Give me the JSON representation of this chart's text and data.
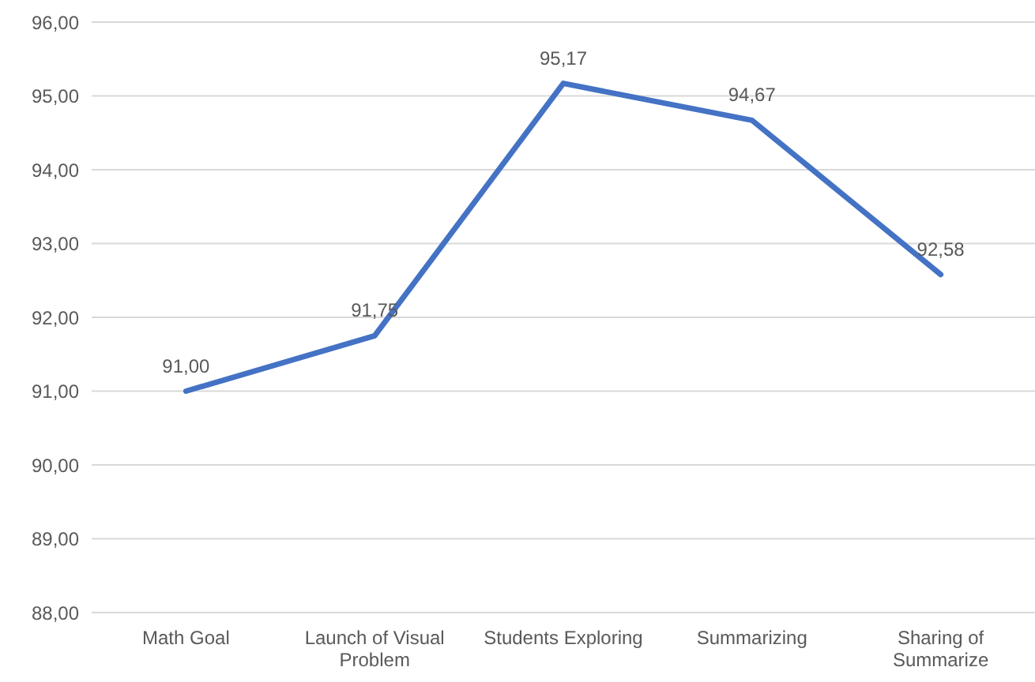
{
  "chart_data": {
    "type": "line",
    "categories": [
      "Math Goal",
      "Launch of Visual Problem",
      "Students Exploring",
      "Summarizing",
      "Sharing of Summarize"
    ],
    "values": [
      91,
      91.75,
      95.17,
      94.67,
      92.58
    ],
    "color": "#4472c4",
    "value_labels": [
      "91,00",
      "91,75",
      "95,17",
      "94,67",
      "92,58"
    ],
    "ylim": [
      88,
      96
    ],
    "yticks": [
      {
        "value": 88,
        "label": "88,00"
      },
      {
        "value": 89,
        "label": "89,00"
      },
      {
        "value": 90,
        "label": "90,00"
      },
      {
        "value": 91,
        "label": "91,00"
      },
      {
        "value": 92,
        "label": "92,00"
      },
      {
        "value": 93,
        "label": "93,00"
      },
      {
        "value": 94,
        "label": "94,00"
      },
      {
        "value": 95,
        "label": "95,00"
      },
      {
        "value": 96,
        "label": "96,00"
      }
    ],
    "grid": "y",
    "marker": "none",
    "line_style": "solid"
  }
}
